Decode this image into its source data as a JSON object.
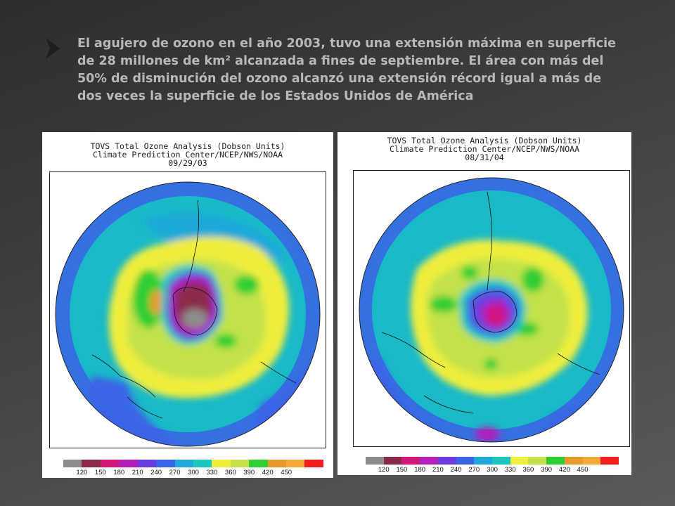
{
  "slide": {
    "title": "El agujero de ozono en el año 2003, tuvo una extensión máxima en superficie de 28 millones de km² alcanzada a fines de septiembre.  El área con más del 50% de disminución del ozono alcanzó una extensión récord igual a más de dos veces la superficie de los Estados Unidos de América",
    "bullet_icon": "chevron-right-icon",
    "accent_color": "#222222"
  },
  "maps": [
    {
      "line1": "TOVS Total Ozone Analysis (Dobson Units)",
      "line2": "Climate Prediction Center/NCEP/NWS/NOAA",
      "date": "09/29/03"
    },
    {
      "line1": "TOVS Total Ozone Analysis (Dobson Units)",
      "line2": "Climate Prediction Center/NCEP/NWS/NOAA",
      "date": "08/31/04"
    }
  ],
  "colorbar": {
    "colors": [
      "#8c8c8c",
      "#8b2a48",
      "#d4157a",
      "#b41fb9",
      "#6a3ce0",
      "#3a64e6",
      "#1fa9d8",
      "#19c7c0",
      "#f0ee3c",
      "#c3e24a",
      "#2fcf34",
      "#e79a2a",
      "#f3a83a",
      "#f21d1d"
    ],
    "labels": [
      "120",
      "150",
      "180",
      "210",
      "240",
      "270",
      "300",
      "330",
      "360",
      "390",
      "420",
      "450"
    ]
  }
}
